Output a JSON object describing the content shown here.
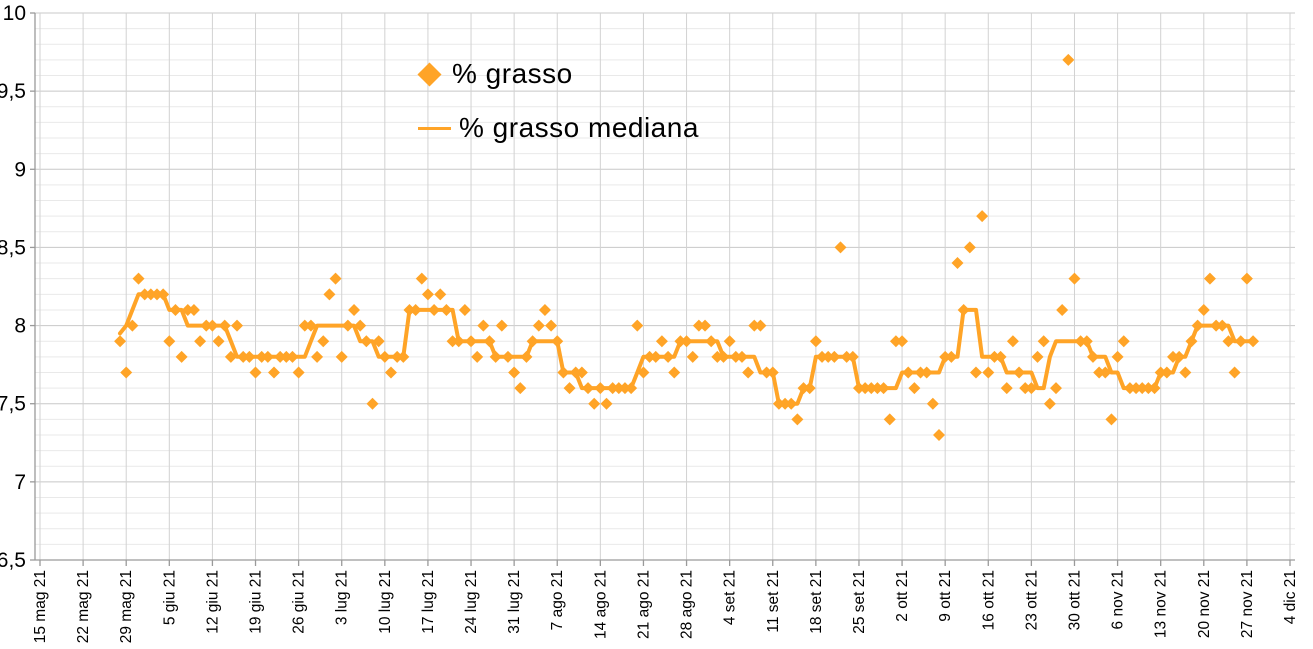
{
  "chart_data": {
    "type": "scatter",
    "title": "",
    "xlabel": "",
    "ylabel": "",
    "ylim": [
      6.5,
      10
    ],
    "y_major_step": 0.5,
    "y_minor_step": 0.1,
    "y_tick_labels": [
      "10",
      "9,5",
      "9",
      "8,5",
      "8",
      "7,5",
      "7",
      "6,5"
    ],
    "x_tick_labels": [
      "15 mag 21",
      "22 mag 21",
      "29 mag 21",
      "5 giu 21",
      "12 giu 21",
      "19 giu 21",
      "26 giu 21",
      "3 lug 21",
      "10 lug 21",
      "17 lug 21",
      "24 lug 21",
      "31 lug 21",
      "7 ago 21",
      "14 ago 21",
      "21 ago 21",
      "28 ago 21",
      "4 set 21",
      "11 set 21",
      "18 set 21",
      "25 set 21",
      "2 ott 21",
      "9 ott 21",
      "16 ott 21",
      "23 ott 21",
      "30 ott 21",
      "6 nov 21",
      "13 nov 21",
      "20 nov 21",
      "27 nov 21",
      "4 dic 21"
    ],
    "days_per_tick": 7,
    "start_day_offset": 13,
    "median_window": 7,
    "grid": true,
    "legend_position": "top-center",
    "colors": {
      "series_orange": "#FFA427",
      "text": "#000000",
      "grid_minor": "#e9e9e9",
      "grid_major": "#c8c8c8",
      "grid_vertical": "#d2d2d2",
      "axis": "#9a9a9a"
    },
    "series": [
      {
        "name": "% grasso",
        "kind": "scatter-diamond",
        "values": [
          7.9,
          7.7,
          8.0,
          8.3,
          8.2,
          8.2,
          8.2,
          8.2,
          7.9,
          8.1,
          7.8,
          8.1,
          8.1,
          7.9,
          8.0,
          8.0,
          7.9,
          8.0,
          7.8,
          8.0,
          7.8,
          7.8,
          7.7,
          7.8,
          7.8,
          7.7,
          7.8,
          7.8,
          7.8,
          7.7,
          8.0,
          8.0,
          7.8,
          7.9,
          8.2,
          8.3,
          7.8,
          8.0,
          8.1,
          8.0,
          7.9,
          7.5,
          7.9,
          7.8,
          7.7,
          7.8,
          7.8,
          8.1,
          8.1,
          8.3,
          8.2,
          8.1,
          8.2,
          8.1,
          7.9,
          7.9,
          8.1,
          7.9,
          7.8,
          8.0,
          7.9,
          7.8,
          8.0,
          7.8,
          7.7,
          7.6,
          7.8,
          7.9,
          8.0,
          8.1,
          8.0,
          7.9,
          7.7,
          7.6,
          7.7,
          7.7,
          7.6,
          7.5,
          7.6,
          7.5,
          7.6,
          7.6,
          7.6,
          7.6,
          8.0,
          7.7,
          7.8,
          7.8,
          7.9,
          7.8,
          7.7,
          7.9,
          7.9,
          7.8,
          8.0,
          8.0,
          7.9,
          7.8,
          7.8,
          7.9,
          7.8,
          7.8,
          7.7,
          8.0,
          8.0,
          7.7,
          7.7,
          7.5,
          7.5,
          7.5,
          7.4,
          7.6,
          7.6,
          7.9,
          7.8,
          7.8,
          7.8,
          8.5,
          7.8,
          7.8,
          7.6,
          7.6,
          7.6,
          7.6,
          7.6,
          7.4,
          7.9,
          7.9,
          7.7,
          7.6,
          7.7,
          7.7,
          7.5,
          7.3,
          7.8,
          7.8,
          8.4,
          8.1,
          8.5,
          7.7,
          8.7,
          7.7,
          7.8,
          7.8,
          7.6,
          7.9,
          7.7,
          7.6,
          7.6,
          7.8,
          7.9,
          7.5,
          7.6,
          8.1,
          9.7,
          8.3,
          7.9,
          7.9,
          7.8,
          7.7,
          7.7,
          7.4,
          7.8,
          7.9,
          7.6,
          7.6,
          7.6,
          7.6,
          7.6,
          7.7,
          7.7,
          7.8,
          7.8,
          7.7,
          7.9,
          8.0,
          8.1,
          8.3,
          8.0,
          8.0,
          7.9,
          7.7,
          7.9,
          8.3,
          7.9
        ]
      },
      {
        "name": "% grasso mediana",
        "kind": "line",
        "derived": "rolling-median-of-series-0"
      }
    ]
  }
}
